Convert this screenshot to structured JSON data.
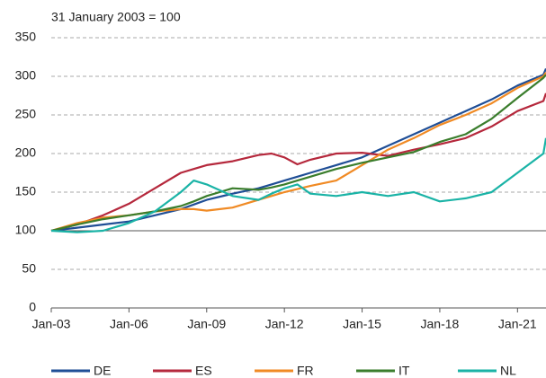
{
  "chart_data": {
    "type": "line",
    "subtitle": "31 January 2003 = 100",
    "x": [
      2003,
      2004,
      2005,
      2006,
      2007,
      2008,
      2008.5,
      2009,
      2010,
      2011,
      2011.5,
      2012,
      2012.5,
      2013,
      2014,
      2015,
      2016,
      2017,
      2018,
      2019,
      2020,
      2021,
      2022,
      2022.1
    ],
    "xlim": [
      2003,
      2022.1
    ],
    "xticks": [
      {
        "value": 2003,
        "label": "Jan-03"
      },
      {
        "value": 2006,
        "label": "Jan-06"
      },
      {
        "value": 2009,
        "label": "Jan-09"
      },
      {
        "value": 2012,
        "label": "Jan-12"
      },
      {
        "value": 2015,
        "label": "Jan-15"
      },
      {
        "value": 2018,
        "label": "Jan-18"
      },
      {
        "value": 2021,
        "label": "Jan-21"
      }
    ],
    "ylim": [
      0,
      350
    ],
    "yticks": [
      0,
      50,
      100,
      150,
      200,
      250,
      300,
      350
    ],
    "grid": true,
    "series": [
      {
        "name": "DE",
        "color": "#1f4e96",
        "values": [
          100,
          104,
          108,
          112,
          120,
          128,
          134,
          140,
          148,
          155,
          160,
          165,
          170,
          175,
          185,
          195,
          210,
          225,
          240,
          255,
          270,
          288,
          302,
          310
        ]
      },
      {
        "name": "ES",
        "color": "#b5283c",
        "values": [
          100,
          108,
          120,
          135,
          155,
          175,
          180,
          185,
          190,
          198,
          200,
          195,
          186,
          192,
          200,
          201,
          197,
          205,
          212,
          220,
          235,
          255,
          268,
          278
        ]
      },
      {
        "name": "FR",
        "color": "#f08a24",
        "values": [
          100,
          110,
          117,
          120,
          125,
          128,
          128,
          126,
          130,
          140,
          145,
          150,
          154,
          158,
          165,
          185,
          205,
          220,
          237,
          250,
          265,
          285,
          300,
          305
        ]
      },
      {
        "name": "IT",
        "color": "#3a7d2c",
        "values": [
          100,
          108,
          115,
          120,
          125,
          132,
          138,
          145,
          155,
          153,
          156,
          160,
          165,
          170,
          180,
          188,
          195,
          202,
          215,
          225,
          245,
          272,
          298,
          302
        ]
      },
      {
        "name": "NL",
        "color": "#1ab3a6",
        "values": [
          100,
          98,
          100,
          110,
          125,
          150,
          165,
          160,
          145,
          140,
          148,
          155,
          160,
          148,
          145,
          150,
          145,
          150,
          138,
          142,
          150,
          175,
          200,
          220
        ]
      }
    ]
  }
}
